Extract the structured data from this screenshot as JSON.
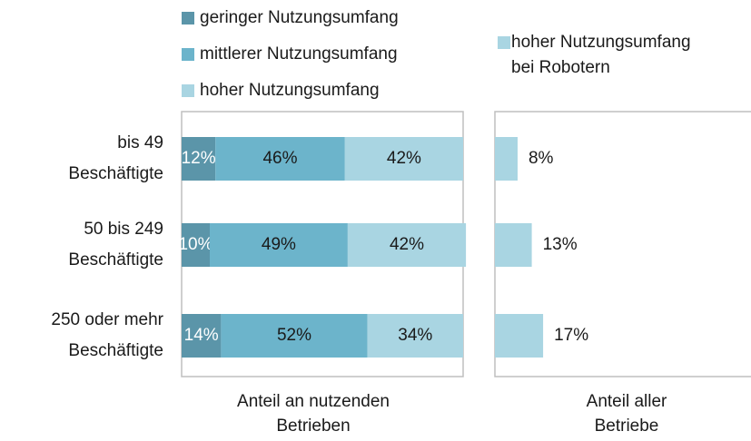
{
  "chart_data": [
    {
      "type": "stacked-bar-h",
      "categories": [
        [
          "bis 49",
          "Beschäftigte"
        ],
        [
          "50 bis 249",
          "Beschäftigte"
        ],
        [
          "250 oder mehr",
          "Beschäftigte"
        ]
      ],
      "series": [
        {
          "name": "geringer Nutzungsumfang",
          "color": "#5b95a9",
          "label_color": "#ffffff",
          "values": [
            12,
            10,
            14
          ],
          "value_labels": [
            "12%",
            "10%",
            "14%"
          ]
        },
        {
          "name": "mittlerer Nutzungsumfang",
          "color": "#6cb4cb",
          "label_color": "#1a1a1a",
          "values": [
            46,
            49,
            52
          ],
          "value_labels": [
            "46%",
            "49%",
            "52%"
          ]
        },
        {
          "name": "hoher Nutzungsumfang",
          "color": "#a9d5e2",
          "label_color": "#1a1a1a",
          "values": [
            42,
            42,
            34
          ],
          "value_labels": [
            "42%",
            "42%",
            "34%"
          ]
        }
      ],
      "xlim": [
        0,
        100
      ],
      "xlabel": [
        "Anteil  an nutzenden",
        "Betrieben"
      ]
    },
    {
      "type": "bar-h",
      "series": [
        {
          "name": [
            "hoher Nutzungsumfang",
            "bei Robotern"
          ],
          "color": "#a9d5e2",
          "label_color": "#1a1a1a",
          "values": [
            8,
            13,
            17
          ],
          "value_labels": [
            "8%",
            "13%",
            "17%"
          ]
        }
      ],
      "xlim": [
        0,
        90
      ],
      "xlabel": [
        "Anteil aller",
        "Betriebe"
      ]
    }
  ]
}
